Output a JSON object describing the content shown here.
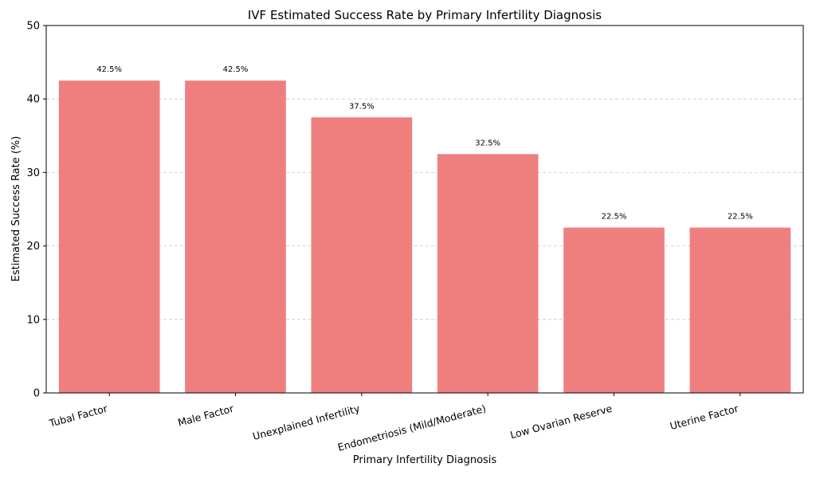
{
  "chart_data": {
    "type": "bar",
    "title": "IVF Estimated Success Rate by Primary Infertility Diagnosis",
    "xlabel": "Primary Infertility Diagnosis",
    "ylabel": "Estimated Success Rate (%)",
    "categories": [
      "Tubal Factor",
      "Male Factor",
      "Unexplained Infertility",
      "Endometriosis (Mild/Moderate)",
      "Low Ovarian Reserve",
      "Uterine Factor"
    ],
    "values": [
      42.5,
      42.5,
      37.5,
      32.5,
      22.5,
      22.5
    ],
    "data_labels": [
      "42.5%",
      "42.5%",
      "37.5%",
      "32.5%",
      "22.5%",
      "22.5%"
    ],
    "ylim": [
      0,
      50
    ],
    "yticks": [
      0,
      10,
      20,
      30,
      40,
      50
    ],
    "grid": true,
    "bar_color": "#ef7f7f"
  }
}
